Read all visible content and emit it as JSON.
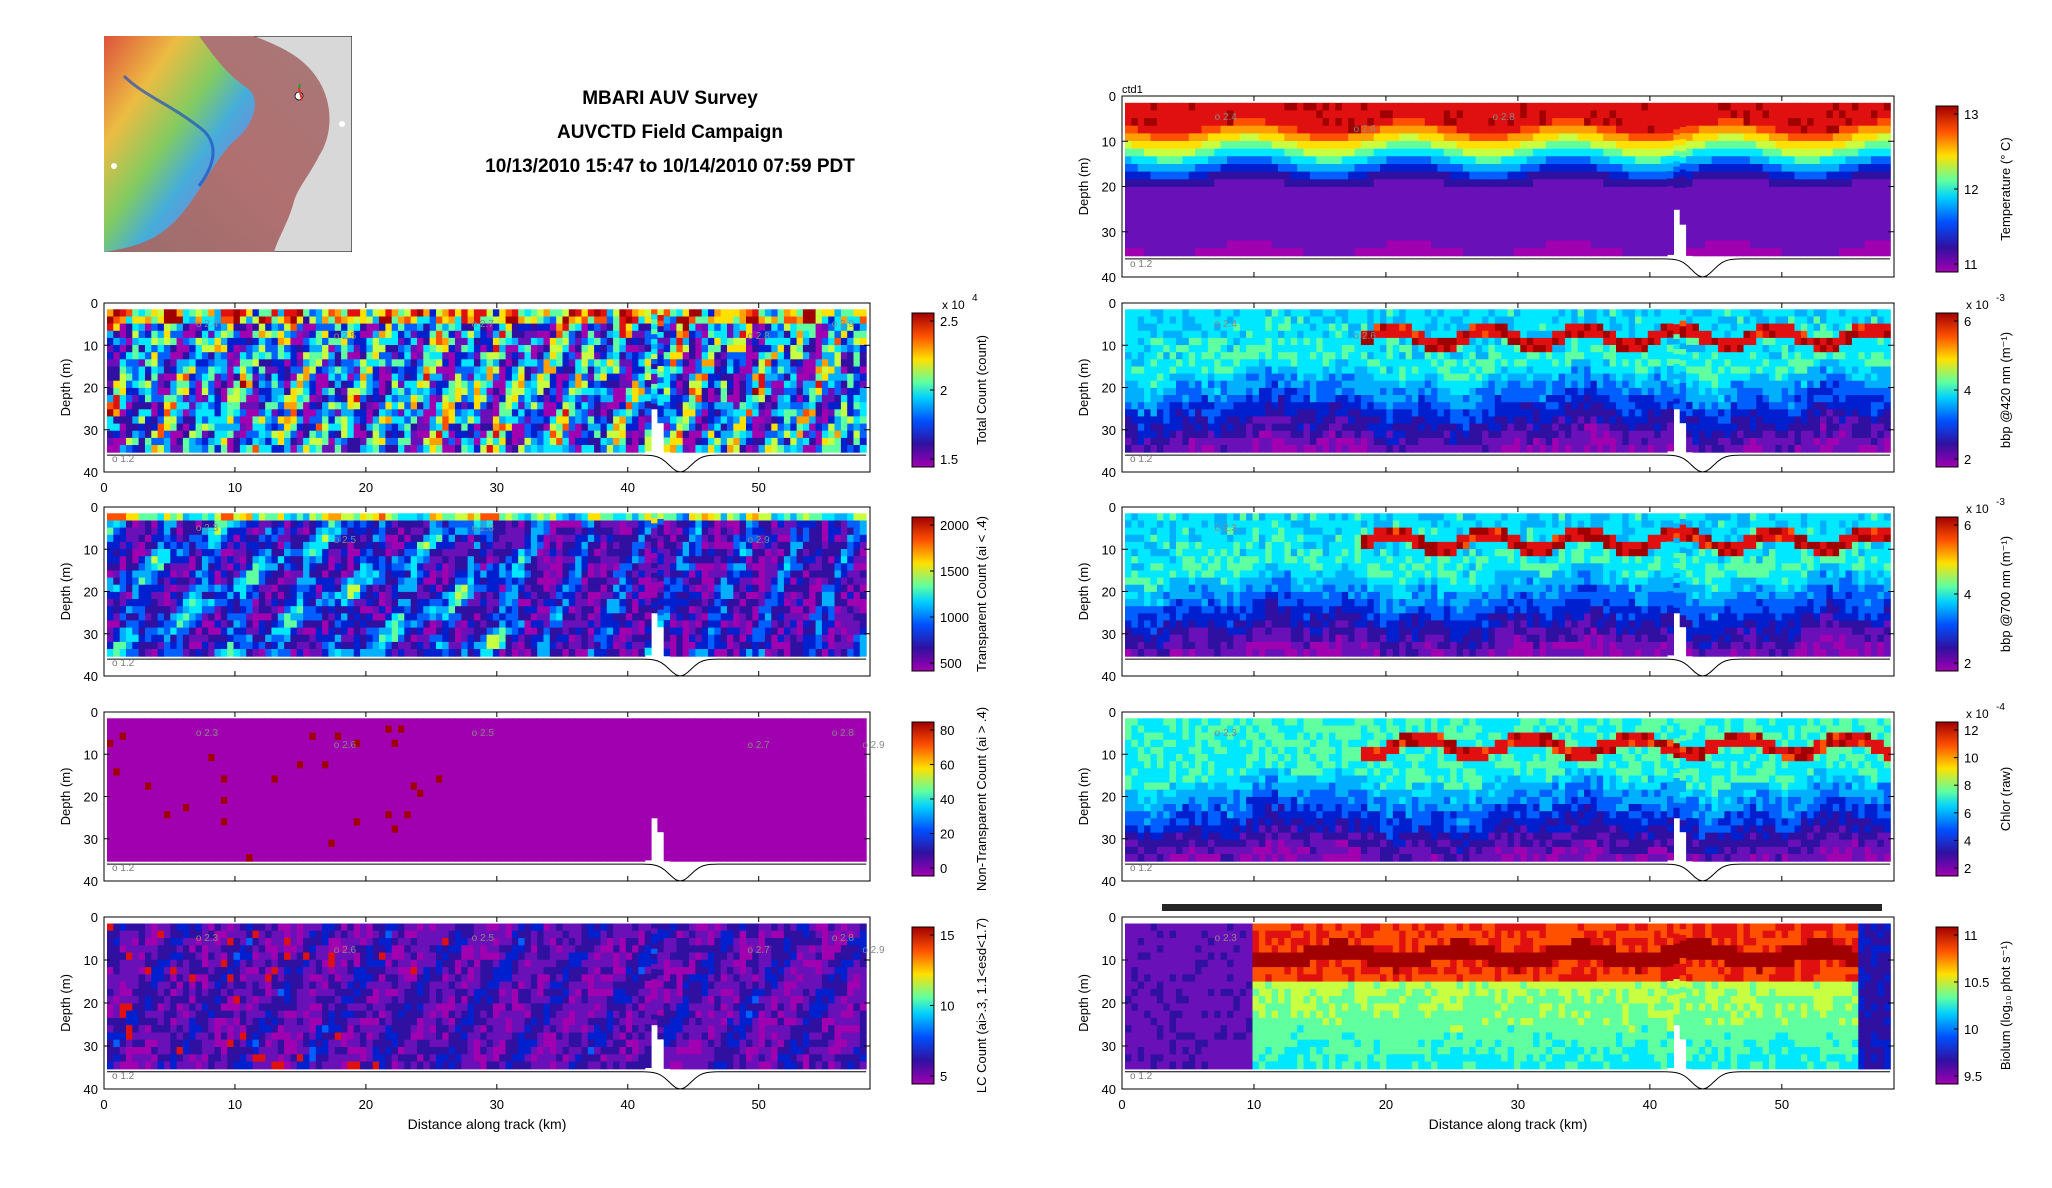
{
  "title": {
    "line1": "MBARI AUV Survey",
    "line2": "AUVCTD Field Campaign",
    "line3": "10/13/2010 15:47 to 10/14/2010 07:59 PDT"
  },
  "map": {
    "land_color": "#d8d8d8",
    "sea_color": "#a87878"
  },
  "chart_data": [
    {
      "id": "total_count",
      "type": "heatmap",
      "ylabel": "Depth (m)",
      "xlabel": "",
      "ylim": [
        40,
        0
      ],
      "xlim": [
        0,
        58.5
      ],
      "yticks": [
        "0",
        "10",
        "20",
        "30",
        "40"
      ],
      "xticks": [
        "0",
        "10",
        "20",
        "30",
        "40",
        "50"
      ],
      "colorbar_label": "Total Count (count)",
      "colorbar_ticks": [
        "2.5",
        "2",
        "1.5"
      ],
      "colorbar_multiplier": "x 10",
      "colorbar_exponent": "4",
      "top_label": "",
      "time_markers": [
        "2.4",
        "2.5",
        "2.7",
        "2.8",
        "2.9"
      ],
      "bottom_left_label": "o 1.2"
    },
    {
      "id": "transparent_count",
      "type": "heatmap",
      "ylabel": "Depth (m)",
      "ylim": [
        40,
        0
      ],
      "xlim": [
        0,
        58.5
      ],
      "yticks": [
        "0",
        "10",
        "20",
        "30",
        "40"
      ],
      "colorbar_label": "Transparent Count (ai < .4)",
      "colorbar_ticks": [
        "2000",
        "1500",
        "1000",
        "500"
      ],
      "colorbar_multiplier": "",
      "colorbar_exponent": "",
      "time_markers": [
        "2.3",
        "2.5",
        "2.8",
        "2.9"
      ],
      "bottom_left_label": "o 1.2"
    },
    {
      "id": "non_transparent_count",
      "type": "heatmap",
      "ylabel": "Depth (m)",
      "ylim": [
        40,
        0
      ],
      "xlim": [
        0,
        58.5
      ],
      "yticks": [
        "0",
        "10",
        "20",
        "30",
        "40"
      ],
      "colorbar_label": "Non-Transparent Count (ai > .4)",
      "colorbar_ticks": [
        "80",
        "60",
        "40",
        "20",
        "0"
      ],
      "colorbar_multiplier": "",
      "colorbar_exponent": "",
      "time_markers": [
        "2.3",
        "2.6",
        "2.5",
        "2.7",
        "2.8",
        "2.9"
      ],
      "bottom_left_label": "o 1.2"
    },
    {
      "id": "lc_count",
      "type": "heatmap",
      "ylabel": "Depth (m)",
      "xlabel": "Distance along track (km)",
      "ylim": [
        40,
        0
      ],
      "xlim": [
        0,
        58.5
      ],
      "yticks": [
        "0",
        "10",
        "20",
        "30",
        "40"
      ],
      "xticks": [
        "0",
        "10",
        "20",
        "30",
        "40",
        "50"
      ],
      "colorbar_label": "LC Count (ai>.3, 1.1<esd<1.7)",
      "colorbar_ticks": [
        "15",
        "10",
        "5"
      ],
      "colorbar_multiplier": "",
      "colorbar_exponent": "",
      "time_markers": [
        "2.3",
        "2.6",
        "2.5",
        "2.7",
        "2.8",
        "2.9"
      ],
      "bottom_left_label": "o 1.2"
    },
    {
      "id": "temperature",
      "type": "heatmap",
      "ylabel": "Depth (m)",
      "ylim": [
        40,
        0
      ],
      "xlim": [
        0,
        58.5
      ],
      "yticks": [
        "0",
        "10",
        "20",
        "30",
        "40"
      ],
      "colorbar_label": "Temperature (° C)",
      "colorbar_ticks": [
        "13",
        "12",
        "11"
      ],
      "colorbar_multiplier": "",
      "colorbar_exponent": "",
      "top_label": "ctd1",
      "time_markers": [
        "2.4",
        "2.6",
        "2.8"
      ],
      "bottom_left_label": "o 1.2"
    },
    {
      "id": "bbp420",
      "type": "heatmap",
      "ylabel": "Depth (m)",
      "ylim": [
        40,
        0
      ],
      "xlim": [
        0,
        58.5
      ],
      "yticks": [
        "0",
        "10",
        "20",
        "30",
        "40"
      ],
      "colorbar_label": "bbp @420 nm (m⁻¹)",
      "colorbar_ticks": [
        "6",
        "4",
        "2"
      ],
      "colorbar_multiplier": "x 10",
      "colorbar_exponent": "-3",
      "time_markers": [
        "2.4",
        "2.6"
      ],
      "bottom_left_label": "o 1.2"
    },
    {
      "id": "bbp700",
      "type": "heatmap",
      "ylabel": "Depth (m)",
      "ylim": [
        40,
        0
      ],
      "xlim": [
        0,
        58.5
      ],
      "yticks": [
        "0",
        "10",
        "20",
        "30",
        "40"
      ],
      "colorbar_label": "bbp @700 nm (m⁻¹)",
      "colorbar_ticks": [
        "6",
        "4",
        "2"
      ],
      "colorbar_multiplier": "x 10",
      "colorbar_exponent": "-3",
      "time_markers": [
        "2.3"
      ],
      "bottom_left_label": ""
    },
    {
      "id": "chlor",
      "type": "heatmap",
      "ylabel": "Depth (m)",
      "ylim": [
        40,
        0
      ],
      "xlim": [
        0,
        58.5
      ],
      "yticks": [
        "0",
        "10",
        "20",
        "30",
        "40"
      ],
      "colorbar_label": "Chlor (raw)",
      "colorbar_ticks": [
        "12",
        "10",
        "8",
        "6",
        "4",
        "2"
      ],
      "colorbar_multiplier": "x 10",
      "colorbar_exponent": "-4",
      "time_markers": [
        "2.3"
      ],
      "bottom_left_label": "o 1.2"
    },
    {
      "id": "biolum",
      "type": "heatmap",
      "ylabel": "Depth (m)",
      "xlabel": "Distance along track (km)",
      "ylim": [
        40,
        0
      ],
      "xlim": [
        0,
        58.5
      ],
      "yticks": [
        "0",
        "10",
        "20",
        "30",
        "40"
      ],
      "xticks": [
        "0",
        "10",
        "20",
        "30",
        "40",
        "50"
      ],
      "colorbar_label": "Biolum (log₁₀ phot s⁻¹)",
      "colorbar_ticks": [
        "11",
        "10.5",
        "10",
        "9.5"
      ],
      "colorbar_multiplier": "",
      "colorbar_exponent": "",
      "time_markers": [
        "2.3"
      ],
      "bottom_left_label": "o 1.2"
    }
  ]
}
